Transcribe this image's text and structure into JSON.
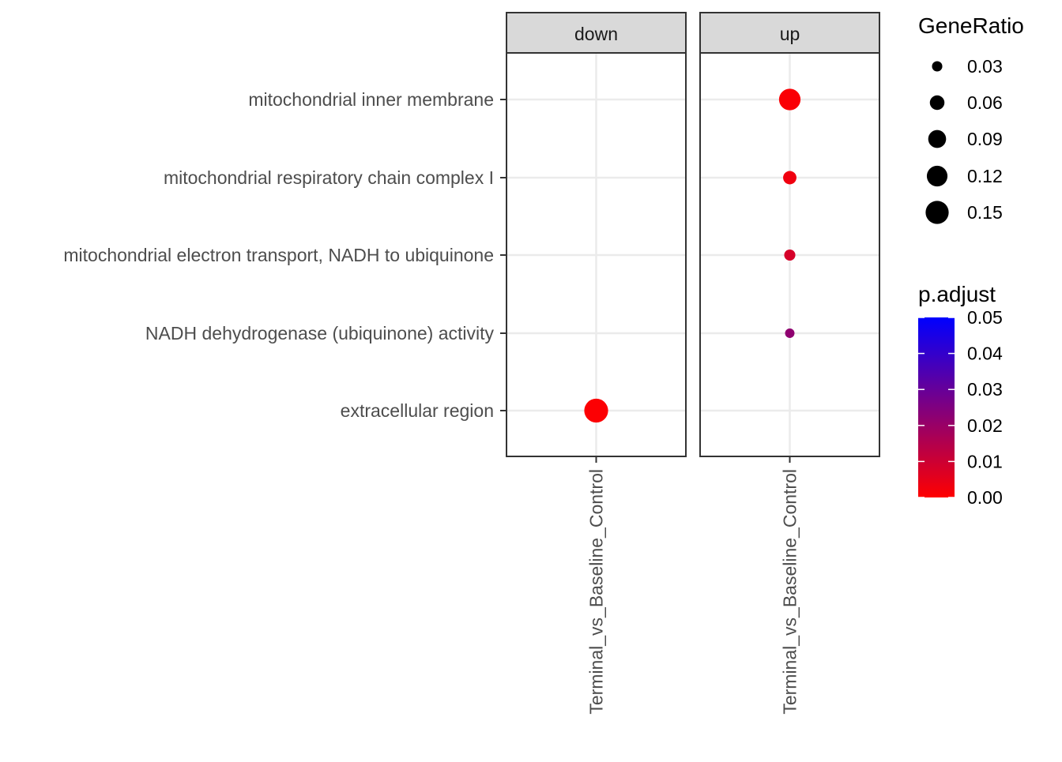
{
  "chart_data": {
    "type": "scatter",
    "facets": [
      "down",
      "up"
    ],
    "x": [
      "Terminal_vs_Baseline_Control"
    ],
    "categories": [
      "mitochondrial inner membrane",
      "mitochondrial respiratory chain complex I",
      "mitochondrial electron transport, NADH to ubiquinone",
      "NADH dehydrogenase (ubiquinone) activity",
      "extracellular region"
    ],
    "points": [
      {
        "facet": "up",
        "x": "Terminal_vs_Baseline_Control",
        "y": "mitochondrial inner membrane",
        "gene_ratio": 0.13,
        "p_adjust": 0.001
      },
      {
        "facet": "up",
        "x": "Terminal_vs_Baseline_Control",
        "y": "mitochondrial respiratory chain complex I",
        "gene_ratio": 0.05,
        "p_adjust": 0.003
      },
      {
        "facet": "up",
        "x": "Terminal_vs_Baseline_Control",
        "y": "mitochondrial electron transport, NADH to ubiquinone",
        "gene_ratio": 0.035,
        "p_adjust": 0.008
      },
      {
        "facet": "up",
        "x": "Terminal_vs_Baseline_Control",
        "y": "NADH dehydrogenase (ubiquinone) activity",
        "gene_ratio": 0.025,
        "p_adjust": 0.022
      },
      {
        "facet": "down",
        "x": "Terminal_vs_Baseline_Control",
        "y": "extracellular region",
        "gene_ratio": 0.16,
        "p_adjust": 0.0005
      }
    ],
    "size_legend": {
      "title": "GeneRatio",
      "breaks": [
        0.03,
        0.06,
        0.09,
        0.12,
        0.15
      ],
      "labels": [
        "0.03",
        "0.06",
        "0.09",
        "0.12",
        "0.15"
      ]
    },
    "color_legend": {
      "title": "p.adjust",
      "range": [
        0.0,
        0.05
      ],
      "low_color": "#ff0000",
      "high_color": "#0000ff",
      "breaks": [
        0.05,
        0.04,
        0.03,
        0.02,
        0.01,
        0.0
      ],
      "labels": [
        "0.05",
        "0.04",
        "0.03",
        "0.02",
        "0.01",
        "0.00"
      ]
    },
    "grid": true,
    "legend_position": "right"
  }
}
